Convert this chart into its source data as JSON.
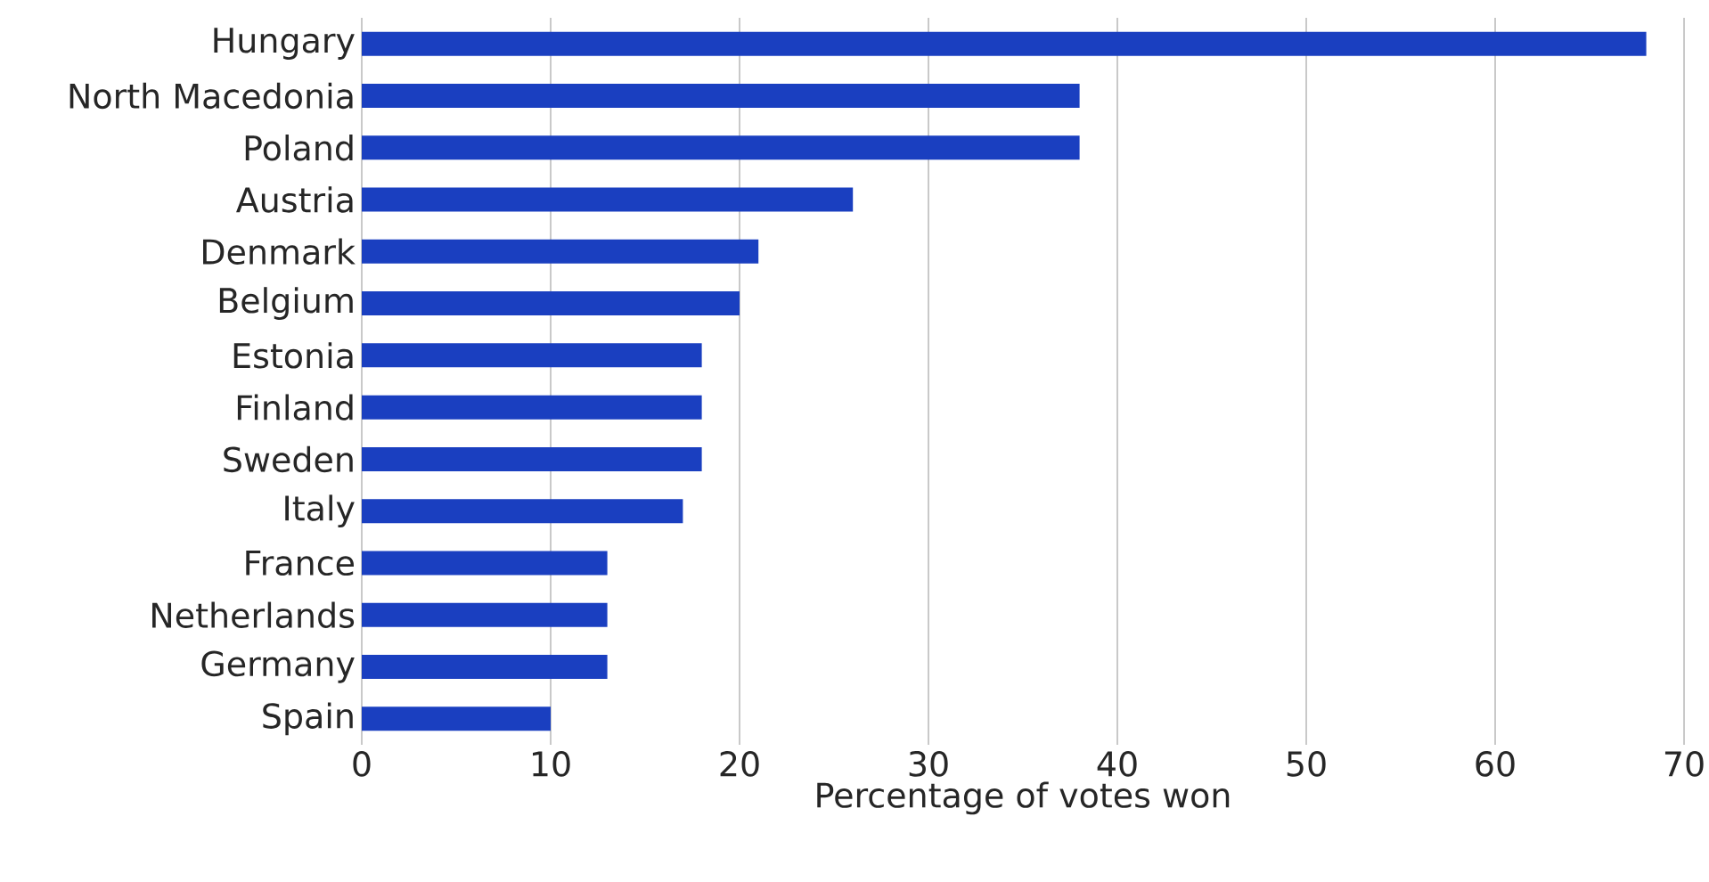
{
  "chart_data": {
    "type": "bar",
    "orientation": "horizontal",
    "xlabel": "Percentage of votes won",
    "categories": [
      "Hungary",
      "North Macedonia",
      "Poland",
      "Austria",
      "Denmark",
      "Belgium",
      "Estonia",
      "Finland",
      "Sweden",
      "Italy",
      "France",
      "Netherlands",
      "Germany",
      "Spain"
    ],
    "values": [
      68,
      38,
      38,
      26,
      21,
      20,
      18,
      18,
      18,
      17,
      13,
      13,
      13,
      10
    ],
    "color": "#1a3fc0",
    "xlim": [
      0,
      70
    ],
    "xticks": [
      0,
      10,
      20,
      30,
      40,
      50,
      60,
      70
    ],
    "grid": "x"
  }
}
